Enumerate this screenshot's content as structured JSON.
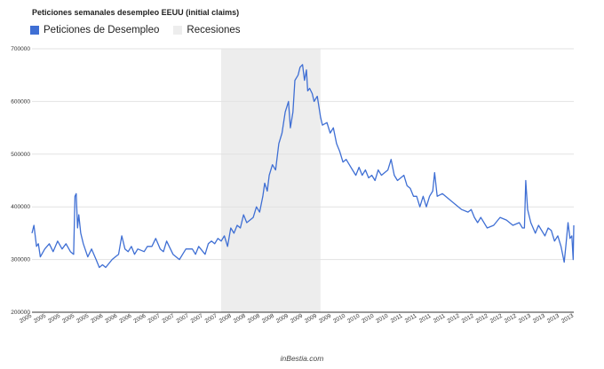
{
  "title": "Peticiones semanales desempleo EEUU (initial claims)",
  "credit": "inBestia.com",
  "colors": {
    "series": "#3f6fd4",
    "recession": "#ededed",
    "grid": "#e2e2e2",
    "axis": "#333333"
  },
  "chart_data": {
    "type": "line",
    "title": "Peticiones semanales desempleo EEUU (initial claims)",
    "legend": "top-left",
    "grid": true,
    "ylim": [
      200000,
      700000
    ],
    "yticks": [
      "200000",
      "300000",
      "400000",
      "500000",
      "600000",
      "700000"
    ],
    "xticks": [
      "2005",
      "2005",
      "2005",
      "2005",
      "2005",
      "2006",
      "2006",
      "2006",
      "2006",
      "2007",
      "2007",
      "2007",
      "2007",
      "2007",
      "2008",
      "2008",
      "2008",
      "2008",
      "2009",
      "2009",
      "2009",
      "2009",
      "2010",
      "2010",
      "2010",
      "2010",
      "2011",
      "2011",
      "2011",
      "2011",
      "2012",
      "2012",
      "2012",
      "2012",
      "2012",
      "2013",
      "2013",
      "2013",
      "2013"
    ],
    "x_range": [
      2005.0,
      2013.45
    ],
    "recessions": [
      {
        "name": "Recesiones",
        "start": 2007.95,
        "end": 2009.5
      }
    ],
    "series": [
      {
        "name": "Peticiones de Desempleo",
        "points": [
          [
            2005.0,
            350000
          ],
          [
            2005.03,
            365000
          ],
          [
            2005.07,
            325000
          ],
          [
            2005.1,
            330000
          ],
          [
            2005.13,
            305000
          ],
          [
            2005.2,
            320000
          ],
          [
            2005.27,
            330000
          ],
          [
            2005.33,
            315000
          ],
          [
            2005.4,
            335000
          ],
          [
            2005.47,
            320000
          ],
          [
            2005.53,
            330000
          ],
          [
            2005.6,
            315000
          ],
          [
            2005.65,
            310000
          ],
          [
            2005.67,
            420000
          ],
          [
            2005.69,
            425000
          ],
          [
            2005.71,
            360000
          ],
          [
            2005.73,
            385000
          ],
          [
            2005.76,
            350000
          ],
          [
            2005.8,
            330000
          ],
          [
            2005.87,
            305000
          ],
          [
            2005.93,
            320000
          ],
          [
            2006.0,
            300000
          ],
          [
            2006.05,
            285000
          ],
          [
            2006.1,
            290000
          ],
          [
            2006.15,
            285000
          ],
          [
            2006.25,
            300000
          ],
          [
            2006.3,
            305000
          ],
          [
            2006.35,
            310000
          ],
          [
            2006.4,
            345000
          ],
          [
            2006.45,
            320000
          ],
          [
            2006.5,
            315000
          ],
          [
            2006.55,
            325000
          ],
          [
            2006.6,
            310000
          ],
          [
            2006.65,
            320000
          ],
          [
            2006.75,
            315000
          ],
          [
            2006.8,
            325000
          ],
          [
            2006.87,
            325000
          ],
          [
            2006.93,
            340000
          ],
          [
            2007.0,
            320000
          ],
          [
            2007.05,
            315000
          ],
          [
            2007.1,
            335000
          ],
          [
            2007.2,
            310000
          ],
          [
            2007.3,
            300000
          ],
          [
            2007.35,
            310000
          ],
          [
            2007.4,
            320000
          ],
          [
            2007.5,
            320000
          ],
          [
            2007.55,
            310000
          ],
          [
            2007.6,
            325000
          ],
          [
            2007.7,
            310000
          ],
          [
            2007.75,
            330000
          ],
          [
            2007.8,
            335000
          ],
          [
            2007.85,
            330000
          ],
          [
            2007.9,
            340000
          ],
          [
            2007.95,
            335000
          ],
          [
            2008.0,
            345000
          ],
          [
            2008.05,
            325000
          ],
          [
            2008.1,
            360000
          ],
          [
            2008.15,
            350000
          ],
          [
            2008.2,
            365000
          ],
          [
            2008.25,
            360000
          ],
          [
            2008.3,
            385000
          ],
          [
            2008.35,
            370000
          ],
          [
            2008.4,
            375000
          ],
          [
            2008.45,
            380000
          ],
          [
            2008.5,
            400000
          ],
          [
            2008.55,
            390000
          ],
          [
            2008.6,
            420000
          ],
          [
            2008.63,
            445000
          ],
          [
            2008.67,
            430000
          ],
          [
            2008.7,
            460000
          ],
          [
            2008.75,
            480000
          ],
          [
            2008.8,
            470000
          ],
          [
            2008.85,
            520000
          ],
          [
            2008.9,
            540000
          ],
          [
            2008.95,
            580000
          ],
          [
            2009.0,
            600000
          ],
          [
            2009.03,
            550000
          ],
          [
            2009.07,
            580000
          ],
          [
            2009.1,
            640000
          ],
          [
            2009.15,
            650000
          ],
          [
            2009.18,
            665000
          ],
          [
            2009.22,
            670000
          ],
          [
            2009.25,
            640000
          ],
          [
            2009.28,
            660000
          ],
          [
            2009.3,
            620000
          ],
          [
            2009.33,
            625000
          ],
          [
            2009.37,
            615000
          ],
          [
            2009.4,
            600000
          ],
          [
            2009.45,
            610000
          ],
          [
            2009.5,
            570000
          ],
          [
            2009.53,
            555000
          ],
          [
            2009.6,
            560000
          ],
          [
            2009.65,
            540000
          ],
          [
            2009.7,
            550000
          ],
          [
            2009.75,
            520000
          ],
          [
            2009.8,
            505000
          ],
          [
            2009.85,
            485000
          ],
          [
            2009.9,
            490000
          ],
          [
            2009.95,
            480000
          ],
          [
            2010.0,
            470000
          ],
          [
            2010.05,
            460000
          ],
          [
            2010.1,
            475000
          ],
          [
            2010.15,
            460000
          ],
          [
            2010.2,
            470000
          ],
          [
            2010.25,
            455000
          ],
          [
            2010.3,
            460000
          ],
          [
            2010.35,
            450000
          ],
          [
            2010.4,
            470000
          ],
          [
            2010.45,
            460000
          ],
          [
            2010.55,
            470000
          ],
          [
            2010.6,
            490000
          ],
          [
            2010.65,
            460000
          ],
          [
            2010.7,
            450000
          ],
          [
            2010.8,
            460000
          ],
          [
            2010.85,
            440000
          ],
          [
            2010.9,
            435000
          ],
          [
            2010.95,
            420000
          ],
          [
            2011.0,
            420000
          ],
          [
            2011.05,
            400000
          ],
          [
            2011.1,
            420000
          ],
          [
            2011.15,
            400000
          ],
          [
            2011.2,
            420000
          ],
          [
            2011.25,
            430000
          ],
          [
            2011.28,
            465000
          ],
          [
            2011.32,
            420000
          ],
          [
            2011.4,
            425000
          ],
          [
            2011.5,
            415000
          ],
          [
            2011.6,
            405000
          ],
          [
            2011.7,
            395000
          ],
          [
            2011.8,
            390000
          ],
          [
            2011.85,
            395000
          ],
          [
            2011.9,
            380000
          ],
          [
            2011.95,
            370000
          ],
          [
            2012.0,
            380000
          ],
          [
            2012.1,
            360000
          ],
          [
            2012.2,
            365000
          ],
          [
            2012.3,
            380000
          ],
          [
            2012.4,
            375000
          ],
          [
            2012.5,
            365000
          ],
          [
            2012.6,
            370000
          ],
          [
            2012.65,
            360000
          ],
          [
            2012.68,
            360000
          ],
          [
            2012.7,
            450000
          ],
          [
            2012.73,
            395000
          ],
          [
            2012.78,
            370000
          ],
          [
            2012.85,
            350000
          ],
          [
            2012.9,
            365000
          ],
          [
            2013.0,
            345000
          ],
          [
            2013.05,
            360000
          ],
          [
            2013.1,
            355000
          ],
          [
            2013.15,
            335000
          ],
          [
            2013.2,
            345000
          ],
          [
            2013.25,
            325000
          ],
          [
            2013.3,
            295000
          ],
          [
            2013.33,
            330000
          ],
          [
            2013.36,
            370000
          ],
          [
            2013.39,
            340000
          ],
          [
            2013.42,
            345000
          ],
          [
            2013.44,
            300000
          ],
          [
            2013.45,
            365000
          ]
        ]
      }
    ]
  }
}
